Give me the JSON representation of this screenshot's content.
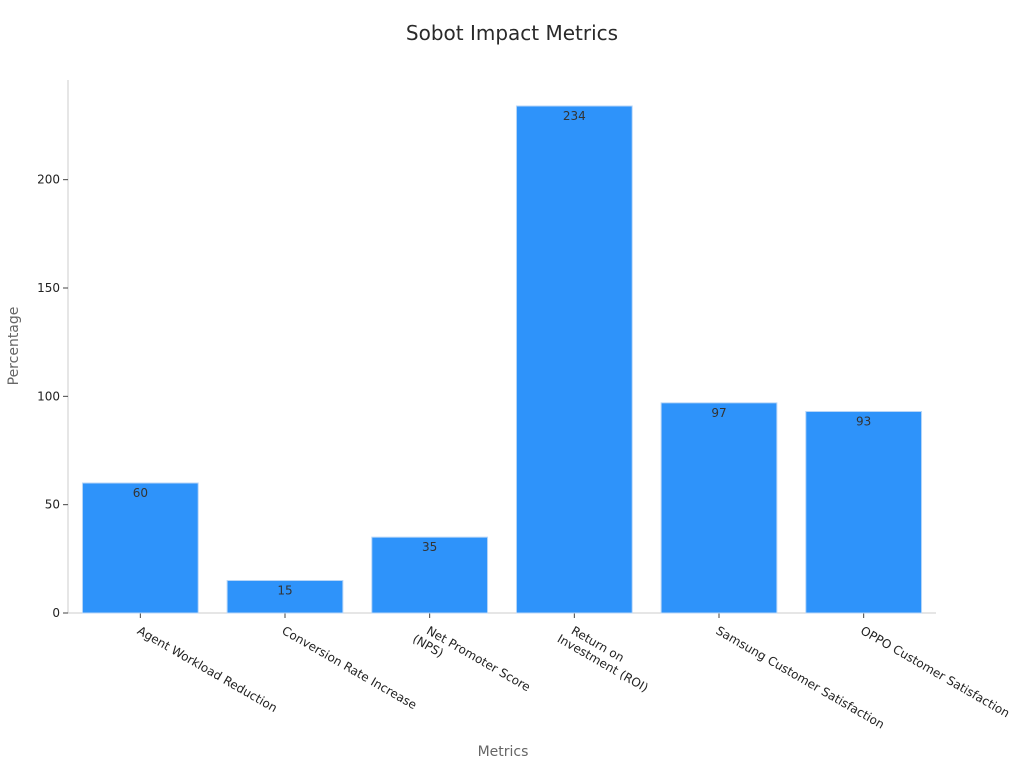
{
  "colors": {
    "bar_fill": "#2E93FA",
    "bar_edge": "#b8d6f7",
    "axis": "#cccccc",
    "text": "#222222"
  },
  "chart_data": {
    "type": "bar",
    "title": "Sobot Impact Metrics",
    "xlabel": "Metrics",
    "ylabel": "Percentage",
    "categories": [
      [
        "Agent Workload Reduction"
      ],
      [
        "Conversion Rate Increase"
      ],
      [
        "Net Promoter Score",
        "(NPS)"
      ],
      [
        "Return on",
        "Investment (ROI)"
      ],
      [
        "Samsung Customer Satisfaction"
      ],
      [
        "OPPO Customer Satisfaction"
      ]
    ],
    "values": [
      60,
      15,
      35,
      234,
      97,
      93
    ],
    "data_labels": [
      "60",
      "15",
      "35",
      "234",
      "97",
      "93"
    ],
    "ylim": [
      0,
      246
    ],
    "yticks": [
      0,
      50,
      100,
      150,
      200
    ],
    "grid": false,
    "legend": "none"
  }
}
